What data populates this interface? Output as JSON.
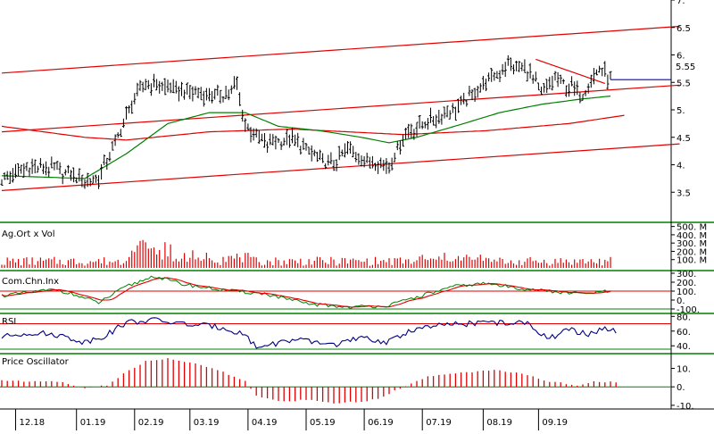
{
  "chart_data": [
    {
      "id": "price",
      "type": "ohlc",
      "panel_label": "",
      "ylim": [
        3.0,
        7.0
      ],
      "y_ticks": [
        {
          "value": 3.5,
          "label": "3.5"
        },
        {
          "value": 4.0,
          "label": "4."
        },
        {
          "value": 4.5,
          "label": "4.5"
        },
        {
          "value": 5.0,
          "label": "5."
        },
        {
          "value": 5.5,
          "label": "5.5"
        },
        {
          "value": 6.0,
          "label": "6."
        },
        {
          "value": 6.5,
          "label": "6.5"
        },
        {
          "value": 7.0,
          "label": "7."
        }
      ],
      "last_price_label": "5.55",
      "last_price": 5.55,
      "price_anchors": [
        {
          "d": 0,
          "v": 3.75
        },
        {
          "d": 10,
          "v": 3.95
        },
        {
          "d": 20,
          "v": 3.9
        },
        {
          "d": 30,
          "v": 3.72
        },
        {
          "d": 35,
          "v": 3.75
        },
        {
          "d": 41,
          "v": 4.4
        },
        {
          "d": 48,
          "v": 5.2
        },
        {
          "d": 52,
          "v": 5.5
        },
        {
          "d": 60,
          "v": 5.4
        },
        {
          "d": 70,
          "v": 5.3
        },
        {
          "d": 80,
          "v": 5.25
        },
        {
          "d": 85,
          "v": 5.45
        },
        {
          "d": 88,
          "v": 4.7
        },
        {
          "d": 95,
          "v": 4.4
        },
        {
          "d": 105,
          "v": 4.45
        },
        {
          "d": 115,
          "v": 4.1
        },
        {
          "d": 120,
          "v": 4.0
        },
        {
          "d": 125,
          "v": 4.3
        },
        {
          "d": 132,
          "v": 4.1
        },
        {
          "d": 140,
          "v": 4.0
        },
        {
          "d": 146,
          "v": 4.6
        },
        {
          "d": 155,
          "v": 4.8
        },
        {
          "d": 165,
          "v": 5.05
        },
        {
          "d": 175,
          "v": 5.5
        },
        {
          "d": 183,
          "v": 5.8
        },
        {
          "d": 190,
          "v": 5.75
        },
        {
          "d": 195,
          "v": 5.3
        },
        {
          "d": 200,
          "v": 5.55
        },
        {
          "d": 210,
          "v": 5.3
        },
        {
          "d": 216,
          "v": 5.75
        },
        {
          "d": 220,
          "v": 5.55
        }
      ],
      "moving_average_anchors": [
        {
          "d": 0,
          "v": 3.8
        },
        {
          "d": 30,
          "v": 3.75
        },
        {
          "d": 45,
          "v": 4.2
        },
        {
          "d": 60,
          "v": 4.75
        },
        {
          "d": 75,
          "v": 4.95
        },
        {
          "d": 88,
          "v": 4.95
        },
        {
          "d": 100,
          "v": 4.7
        },
        {
          "d": 115,
          "v": 4.62
        },
        {
          "d": 130,
          "v": 4.5
        },
        {
          "d": 140,
          "v": 4.4
        },
        {
          "d": 150,
          "v": 4.5
        },
        {
          "d": 165,
          "v": 4.72
        },
        {
          "d": 180,
          "v": 4.95
        },
        {
          "d": 195,
          "v": 5.1
        },
        {
          "d": 210,
          "v": 5.2
        },
        {
          "d": 220,
          "v": 5.25
        }
      ],
      "regression_channel": {
        "start": {
          "d": 0,
          "v": 4.6
        },
        "end": {
          "d": 245,
          "v": 5.45
        },
        "offset": 1.07
      },
      "midline_curve": [
        {
          "d": 0,
          "v": 4.7
        },
        {
          "d": 30,
          "v": 4.5
        },
        {
          "d": 45,
          "v": 4.45
        },
        {
          "d": 75,
          "v": 4.6
        },
        {
          "d": 105,
          "v": 4.65
        },
        {
          "d": 145,
          "v": 4.55
        },
        {
          "d": 175,
          "v": 4.62
        },
        {
          "d": 205,
          "v": 4.75
        },
        {
          "d": 225,
          "v": 4.9
        }
      ],
      "trend_line": {
        "start": {
          "d": 193,
          "v": 5.92
        },
        "end": {
          "d": 218,
          "v": 5.48
        }
      }
    },
    {
      "id": "volume",
      "type": "bar",
      "panel_label": "Ag.Ort x Vol",
      "ylim": [
        0,
        550
      ],
      "y_ticks": [
        {
          "value": 100,
          "label": "100. M"
        },
        {
          "value": 200,
          "label": "200. M"
        },
        {
          "value": 300,
          "label": "300. M"
        },
        {
          "value": 400,
          "label": "400. M"
        },
        {
          "value": 500,
          "label": "500. M"
        }
      ]
    },
    {
      "id": "cci",
      "type": "line",
      "panel_label": "Com.Chn.Inx",
      "ylim": [
        -120,
        330
      ],
      "y_ticks": [
        {
          "value": 300,
          "label": "300."
        },
        {
          "value": 200,
          "label": "200."
        },
        {
          "value": 100,
          "label": "100."
        },
        {
          "value": 0,
          "label": "0."
        },
        {
          "value": -100,
          "label": "-100."
        }
      ],
      "reference_lines": [
        100,
        -100
      ],
      "anchors": [
        {
          "d": 0,
          "v": 50
        },
        {
          "d": 20,
          "v": 120
        },
        {
          "d": 35,
          "v": -30
        },
        {
          "d": 45,
          "v": 150
        },
        {
          "d": 55,
          "v": 270
        },
        {
          "d": 65,
          "v": 180
        },
        {
          "d": 80,
          "v": 110
        },
        {
          "d": 95,
          "v": 70
        },
        {
          "d": 110,
          "v": -40
        },
        {
          "d": 125,
          "v": -80
        },
        {
          "d": 140,
          "v": -60
        },
        {
          "d": 155,
          "v": 80
        },
        {
          "d": 165,
          "v": 160
        },
        {
          "d": 175,
          "v": 185
        },
        {
          "d": 185,
          "v": 140
        },
        {
          "d": 200,
          "v": 90
        },
        {
          "d": 210,
          "v": 70
        },
        {
          "d": 220,
          "v": 100
        }
      ]
    },
    {
      "id": "rsi",
      "type": "line",
      "panel_label": "RSI",
      "ylim": [
        33,
        84
      ],
      "y_ticks": [
        {
          "value": 80,
          "label": "80."
        },
        {
          "value": 60,
          "label": "60."
        },
        {
          "value": 40,
          "label": "40."
        }
      ],
      "reference_lines": [
        70,
        30
      ],
      "anchors": [
        {
          "d": 0,
          "v": 52
        },
        {
          "d": 10,
          "v": 58
        },
        {
          "d": 20,
          "v": 55
        },
        {
          "d": 30,
          "v": 45
        },
        {
          "d": 38,
          "v": 55
        },
        {
          "d": 45,
          "v": 72
        },
        {
          "d": 55,
          "v": 75
        },
        {
          "d": 65,
          "v": 70
        },
        {
          "d": 80,
          "v": 65
        },
        {
          "d": 88,
          "v": 55
        },
        {
          "d": 92,
          "v": 38
        },
        {
          "d": 105,
          "v": 48
        },
        {
          "d": 120,
          "v": 42
        },
        {
          "d": 130,
          "v": 50
        },
        {
          "d": 140,
          "v": 45
        },
        {
          "d": 148,
          "v": 62
        },
        {
          "d": 160,
          "v": 68
        },
        {
          "d": 175,
          "v": 72
        },
        {
          "d": 190,
          "v": 70
        },
        {
          "d": 198,
          "v": 50
        },
        {
          "d": 205,
          "v": 62
        },
        {
          "d": 212,
          "v": 55
        },
        {
          "d": 218,
          "v": 65
        },
        {
          "d": 222,
          "v": 58
        }
      ]
    },
    {
      "id": "price_oscillator",
      "type": "bar",
      "panel_label": "Price Oscillator",
      "ylim": [
        -12,
        18
      ],
      "y_ticks": [
        {
          "value": 10,
          "label": "10."
        },
        {
          "value": 0,
          "label": "0."
        },
        {
          "value": -10,
          "label": "-10."
        }
      ],
      "anchors": [
        {
          "d": 0,
          "v": 3.5
        },
        {
          "d": 12,
          "v": 3.0
        },
        {
          "d": 22,
          "v": 2.5
        },
        {
          "d": 30,
          "v": -1.0
        },
        {
          "d": 38,
          "v": 1.0
        },
        {
          "d": 45,
          "v": 8
        },
        {
          "d": 52,
          "v": 14
        },
        {
          "d": 60,
          "v": 15.5
        },
        {
          "d": 70,
          "v": 12.5
        },
        {
          "d": 80,
          "v": 8
        },
        {
          "d": 88,
          "v": 3
        },
        {
          "d": 92,
          "v": -5
        },
        {
          "d": 100,
          "v": -8
        },
        {
          "d": 110,
          "v": -7
        },
        {
          "d": 122,
          "v": -9
        },
        {
          "d": 135,
          "v": -7
        },
        {
          "d": 146,
          "v": 0.5
        },
        {
          "d": 155,
          "v": 6
        },
        {
          "d": 168,
          "v": 8
        },
        {
          "d": 178,
          "v": 9
        },
        {
          "d": 188,
          "v": 7
        },
        {
          "d": 198,
          "v": 3
        },
        {
          "d": 208,
          "v": 0.8
        },
        {
          "d": 215,
          "v": 3
        },
        {
          "d": 222,
          "v": 2.5
        }
      ]
    }
  ],
  "x_axis": {
    "months": [
      {
        "label": "12.18",
        "d": 5
      },
      {
        "label": "01.19",
        "d": 27
      },
      {
        "label": "02.19",
        "d": 48
      },
      {
        "label": "03.19",
        "d": 68
      },
      {
        "label": "04.19",
        "d": 89
      },
      {
        "label": "05.19",
        "d": 110
      },
      {
        "label": "06.19",
        "d": 131
      },
      {
        "label": "07.19",
        "d": 152
      },
      {
        "label": "08.19",
        "d": 174
      },
      {
        "label": "09.19",
        "d": 194
      }
    ]
  },
  "colors": {
    "price_bars": "#000000",
    "channel": "#e00000",
    "moving_average": "#008000",
    "last_price_line": "#0000cc",
    "volume_bars": "#e00000",
    "cci_line": "#e00000",
    "cci_signal": "#008000",
    "rsi_line": "#000080",
    "oscillator_bars": "#e00000",
    "panel_border": "#008000",
    "reference_line": "#e00000",
    "zero_line": "#008000"
  }
}
